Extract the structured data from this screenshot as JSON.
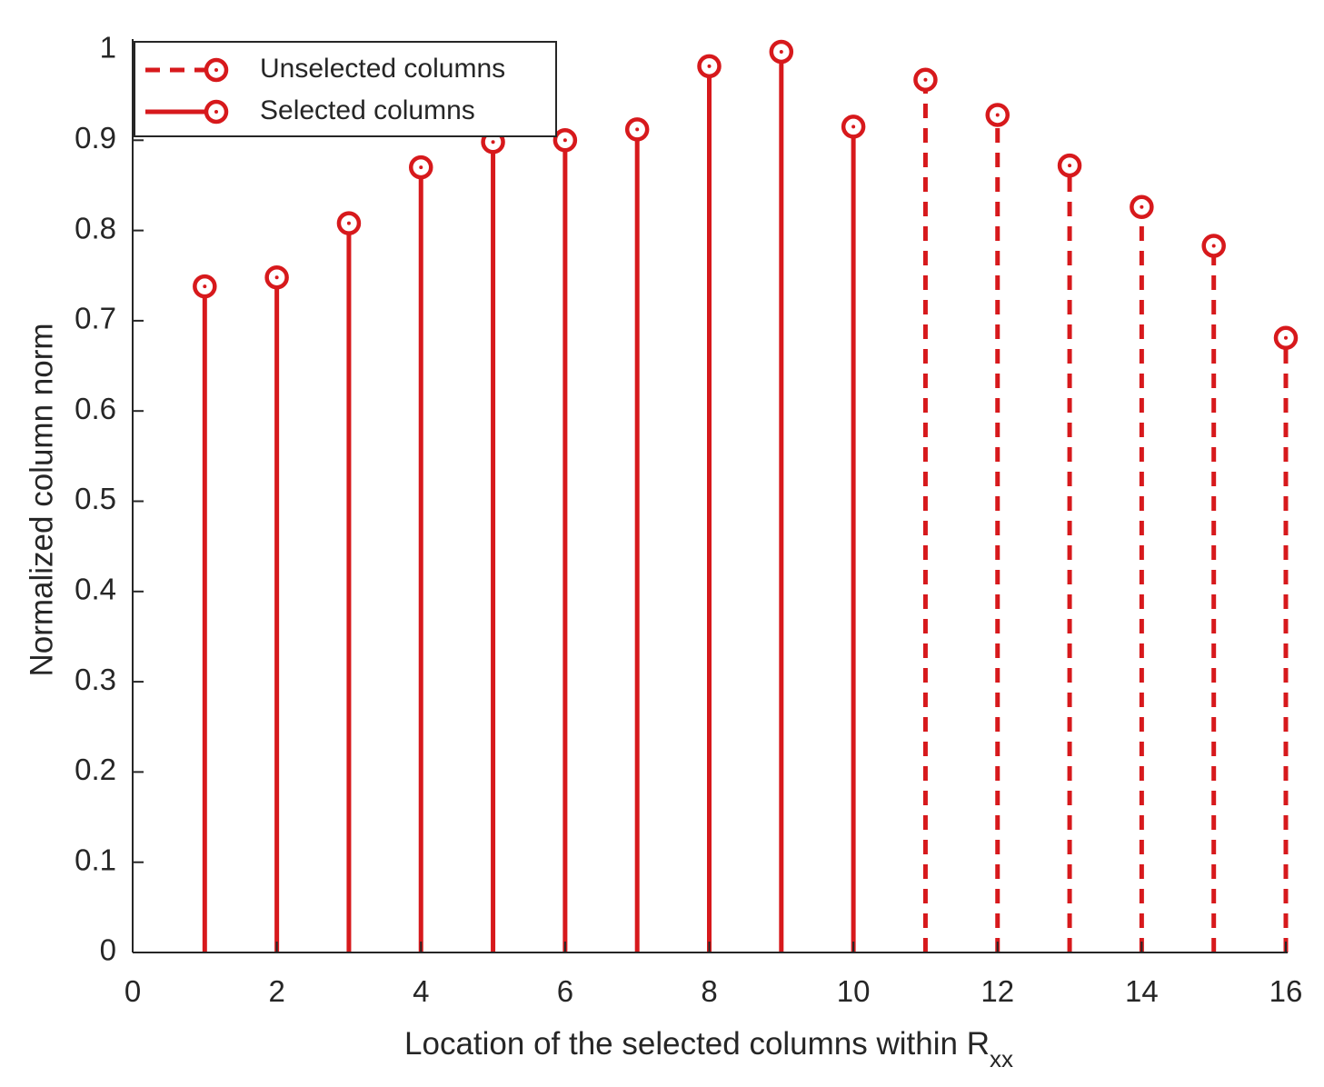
{
  "chart_data": {
    "type": "stem",
    "title": "",
    "xlabel": "Location of the selected columns within R",
    "xlabel_subscript": "xx",
    "ylabel": "Normalized column norm",
    "xlim": [
      0,
      16
    ],
    "ylim": [
      0,
      1
    ],
    "xticks": [
      "0",
      "2",
      "4",
      "6",
      "8",
      "10",
      "12",
      "14",
      "16"
    ],
    "yticks": [
      "0",
      "0.1",
      "0.2",
      "0.3",
      "0.4",
      "0.5",
      "0.6",
      "0.7",
      "0.8",
      "0.9",
      "1"
    ],
    "grid": false,
    "legend_position": "top-left",
    "series": [
      {
        "name": "Unselected columns",
        "line_style": "dashed",
        "marker": "circle",
        "color": "#d7191c",
        "x": [
          11,
          12,
          13,
          14,
          15,
          16
        ],
        "y": [
          0.967,
          0.928,
          0.872,
          0.826,
          0.783,
          0.681
        ]
      },
      {
        "name": "Selected columns",
        "line_style": "solid",
        "marker": "circle",
        "color": "#d7191c",
        "x": [
          1,
          2,
          3,
          4,
          5,
          6,
          7,
          8,
          9,
          10
        ],
        "y": [
          0.738,
          0.748,
          0.808,
          0.87,
          0.898,
          0.9,
          0.912,
          0.982,
          0.998,
          0.915
        ]
      }
    ]
  }
}
